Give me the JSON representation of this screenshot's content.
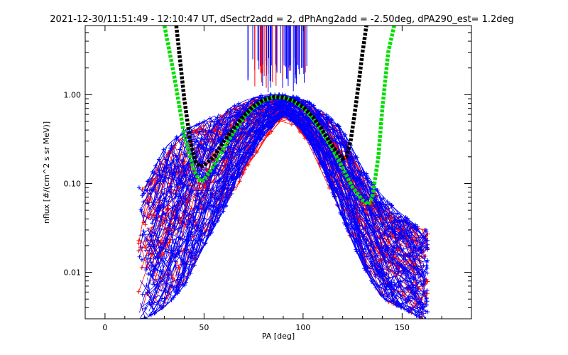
{
  "chart_data": {
    "type": "line",
    "title": "2021-12-30/11:51:49 - 12:10:47 UT, dSectr2add = 2, dPhAng2add = -2.50deg, dPA290_est=   1.2deg",
    "xlabel": "PA [deg]",
    "ylabel": "nflux [#/(cm^2 s sr MeV)]",
    "xlim": [
      -10,
      185
    ],
    "ylim": [
      0.003,
      6.0
    ],
    "yscale": "log",
    "xticks": [
      0,
      50,
      100,
      150
    ],
    "xtick_labels": [
      "0",
      "50",
      "100",
      "150"
    ],
    "yticks": [
      0.01,
      0.1,
      1.0
    ],
    "ytick_labels": [
      "0.01",
      "0.10",
      "1.00"
    ],
    "colors": {
      "red_traces": "#ff0000",
      "blue_traces": "#0000ff",
      "green_fit": "#00e000",
      "black_fit": "#000000",
      "axes": "#000000"
    },
    "series": [
      {
        "kind": "fit_curve",
        "color": "green",
        "x": [
          30,
          35,
          40,
          45,
          48,
          50,
          55,
          60,
          65,
          70,
          75,
          80,
          85,
          90,
          95,
          100,
          105,
          110,
          115,
          120,
          125,
          130,
          133,
          135,
          138,
          140,
          143,
          146
        ],
        "y": [
          6.0,
          1.6,
          0.35,
          0.14,
          0.105,
          0.11,
          0.16,
          0.25,
          0.38,
          0.55,
          0.72,
          0.86,
          0.94,
          0.93,
          0.85,
          0.71,
          0.54,
          0.37,
          0.24,
          0.15,
          0.09,
          0.065,
          0.058,
          0.07,
          0.2,
          0.7,
          3.0,
          6.0
        ]
      },
      {
        "kind": "fit_curve",
        "color": "black",
        "x": [
          36,
          40,
          43,
          46,
          48,
          50,
          55,
          60,
          65,
          70,
          75,
          80,
          85,
          90,
          95,
          100,
          105,
          110,
          115,
          120,
          122,
          124,
          126,
          128,
          130,
          132
        ],
        "y": [
          6.0,
          0.9,
          0.3,
          0.17,
          0.155,
          0.16,
          0.2,
          0.3,
          0.42,
          0.58,
          0.74,
          0.87,
          0.94,
          0.93,
          0.86,
          0.73,
          0.56,
          0.39,
          0.26,
          0.19,
          0.2,
          0.3,
          0.6,
          1.3,
          3.0,
          6.0
        ]
      }
    ],
    "bundle_summary": {
      "red": {
        "x": [
          20,
          30,
          40,
          50,
          60,
          70,
          80,
          90,
          100,
          110,
          120,
          130,
          140,
          150,
          160
        ],
        "y_low": [
          0.003,
          0.004,
          0.008,
          0.02,
          0.05,
          0.12,
          0.3,
          0.55,
          0.35,
          0.13,
          0.04,
          0.012,
          0.005,
          0.004,
          0.003
        ],
        "y_high": [
          0.09,
          0.2,
          0.35,
          0.45,
          0.6,
          0.8,
          0.95,
          0.95,
          0.85,
          0.6,
          0.35,
          0.12,
          0.06,
          0.04,
          0.03
        ]
      },
      "blue": {
        "x": [
          20,
          30,
          40,
          50,
          60,
          70,
          80,
          90,
          100,
          110,
          120,
          130,
          140,
          150,
          160
        ],
        "y_low": [
          0.003,
          0.004,
          0.007,
          0.02,
          0.05,
          0.15,
          0.35,
          0.6,
          0.4,
          0.15,
          0.04,
          0.012,
          0.005,
          0.004,
          0.003
        ],
        "y_high": [
          0.09,
          0.25,
          0.4,
          0.5,
          0.65,
          0.85,
          1.0,
          1.0,
          0.9,
          0.65,
          0.4,
          0.15,
          0.07,
          0.045,
          0.03
        ]
      }
    },
    "spikes": {
      "x_min": 72,
      "x_max": 102,
      "y_bottom_min": 1.05,
      "y_bottom_max": 2.6
    }
  }
}
